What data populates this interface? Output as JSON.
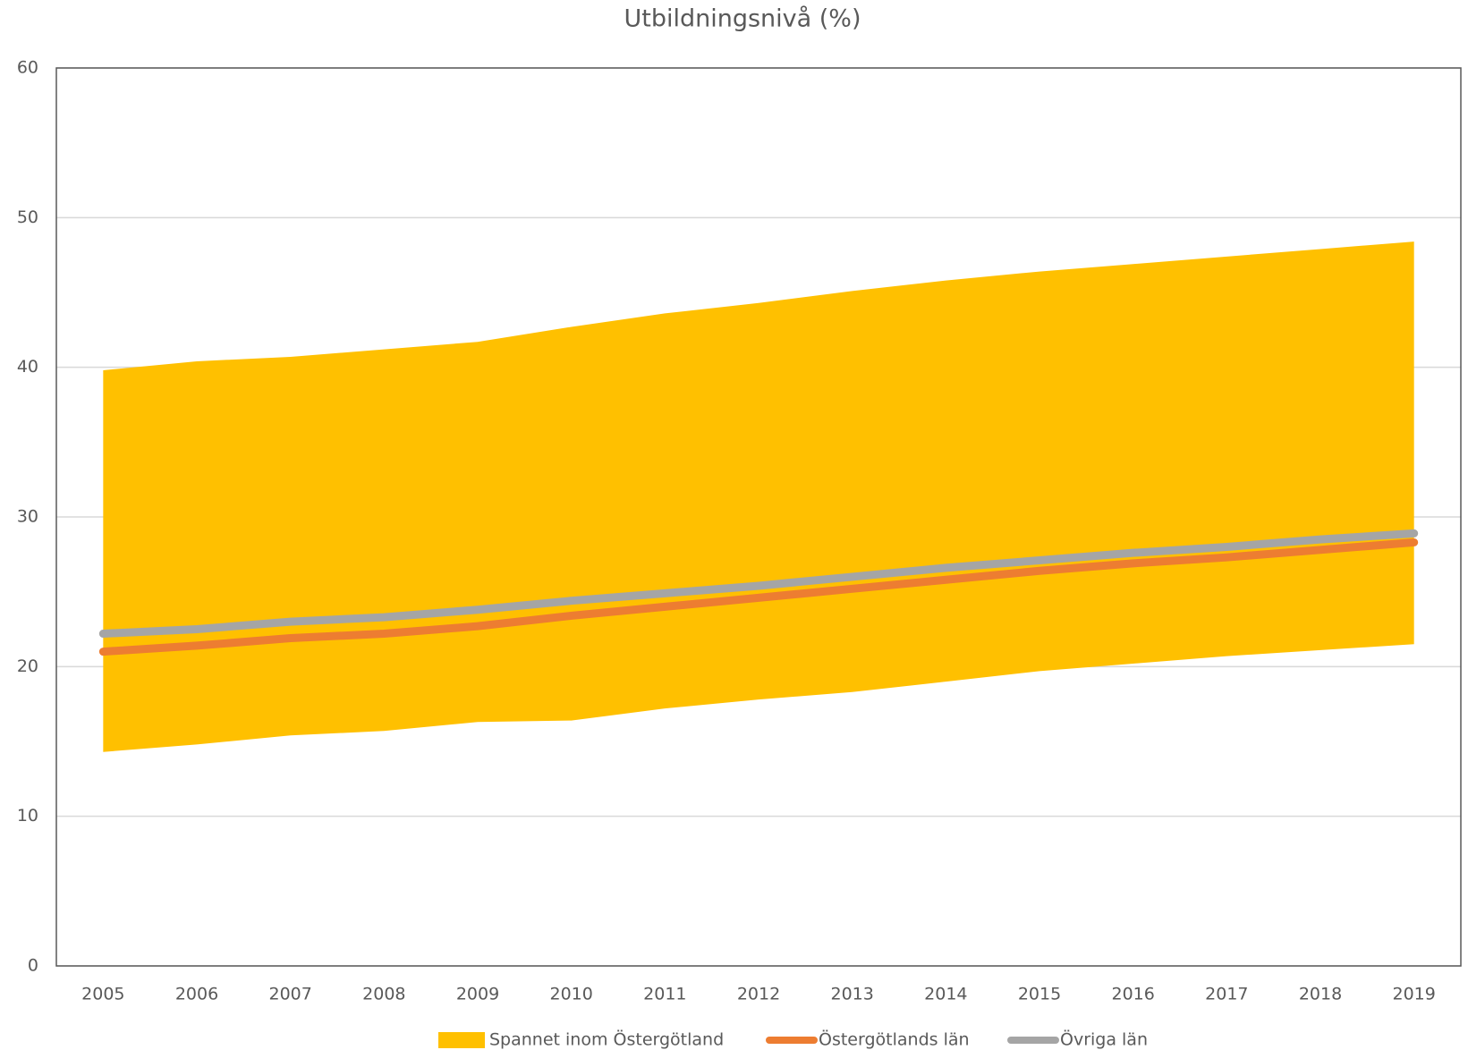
{
  "chart_data": {
    "type": "line",
    "title": "Utbildningsnivå (%)",
    "categories": [
      "2005",
      "2006",
      "2007",
      "2008",
      "2009",
      "2010",
      "2011",
      "2012",
      "2013",
      "2014",
      "2015",
      "2016",
      "2017",
      "2018",
      "2019"
    ],
    "band": {
      "name": "Spannet inom Östergötland",
      "color": "#ffc000",
      "low": [
        14.3,
        14.8,
        15.4,
        15.7,
        16.3,
        16.4,
        17.2,
        17.8,
        18.3,
        19.0,
        19.7,
        20.2,
        20.7,
        21.1,
        21.5
      ],
      "high": [
        39.8,
        40.4,
        40.7,
        41.2,
        41.7,
        42.7,
        43.6,
        44.3,
        45.1,
        45.8,
        46.4,
        46.9,
        47.4,
        47.9,
        48.4
      ]
    },
    "series": [
      {
        "name": "Östergötlands län",
        "color": "#ed7d31",
        "values": [
          21.0,
          21.4,
          21.9,
          22.2,
          22.7,
          23.4,
          24.0,
          24.6,
          25.2,
          25.8,
          26.4,
          26.9,
          27.3,
          27.8,
          28.3
        ]
      },
      {
        "name": "Övriga län",
        "color": "#a5a5a5",
        "values": [
          22.2,
          22.5,
          23.0,
          23.3,
          23.8,
          24.4,
          24.9,
          25.4,
          26.0,
          26.6,
          27.1,
          27.6,
          28.0,
          28.5,
          28.9
        ]
      }
    ],
    "ylim": [
      0,
      60
    ],
    "yticks": [
      0,
      10,
      20,
      30,
      40,
      50,
      60
    ],
    "grid": true,
    "legend": "bottom"
  }
}
